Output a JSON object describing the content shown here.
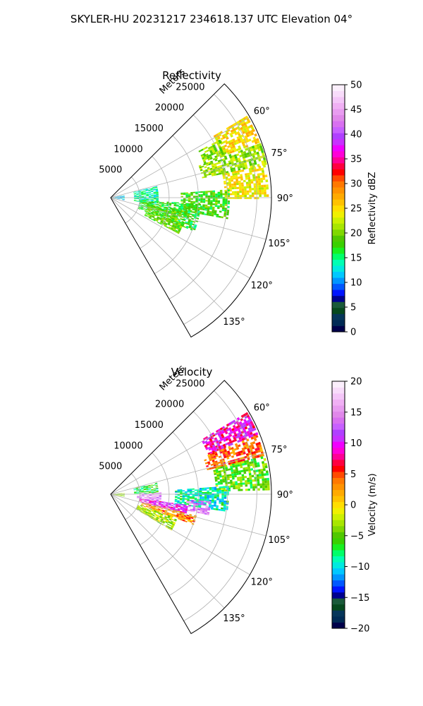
{
  "figure": {
    "suptitle": "SKYLER-HU  20231217  234618.137 UTC Elevation 04°"
  },
  "chart_data": [
    {
      "type": "heatmap",
      "title": "Reflectivity",
      "projection": "polar-sector",
      "theta_direction": "clockwise",
      "theta_zero": "north",
      "theta_range_deg": [
        45,
        150
      ],
      "r_range_m": [
        0,
        27500
      ],
      "r_label": "Meters",
      "r_ticks": [
        "5000",
        "10000",
        "15000",
        "20000",
        "25000"
      ],
      "r_tick_values": [
        5000,
        10000,
        15000,
        20000,
        25000
      ],
      "theta_ticks": [
        "60°",
        "75°",
        "90°",
        "105°",
        "120°",
        "135°"
      ],
      "theta_tick_values": [
        60,
        75,
        90,
        105,
        120,
        135
      ],
      "grid": true,
      "colorbar": {
        "label": "Reflectivity dBZ",
        "vmin": 0,
        "vmax": 50,
        "ticks": [
          "0",
          "5",
          "10",
          "15",
          "20",
          "25",
          "30",
          "35",
          "40",
          "45",
          "50"
        ],
        "tick_values": [
          0,
          5,
          10,
          15,
          20,
          25,
          30,
          35,
          40,
          45,
          50
        ],
        "colors": [
          "#00004a",
          "#002a55",
          "#06365a",
          "#06491e",
          "#1a5a3a",
          "#00008f",
          "#0014ff",
          "#0058ff",
          "#0096ff",
          "#00c8ff",
          "#00eae0",
          "#00ffb4",
          "#00ff6a",
          "#18f020",
          "#3ad000",
          "#50c800",
          "#80d800",
          "#a8e600",
          "#ccf000",
          "#f0f000",
          "#ffde00",
          "#ffc200",
          "#ffaa00",
          "#ff9200",
          "#ff7800",
          "#ff4a00",
          "#ff0000",
          "#ff0040",
          "#ff0096",
          "#ff00d8",
          "#f000ff",
          "#c830ff",
          "#b040ff",
          "#c860ff",
          "#d870f0",
          "#e088ea",
          "#e89cf0",
          "#f0b0f4",
          "#f4c6f8",
          "#f8dcfa",
          "#fbeffc"
        ]
      },
      "echo_regions": [
        {
          "theta": [
            59,
            69
          ],
          "r": [
            20500,
            27000
          ],
          "value": 25
        },
        {
          "theta": [
            62,
            70
          ],
          "r": [
            17000,
            21000
          ],
          "value": 20
        },
        {
          "theta": [
            70,
            78
          ],
          "r": [
            16000,
            27000
          ],
          "value": 21
        },
        {
          "theta": [
            78,
            90
          ],
          "r": [
            19500,
            27000
          ],
          "value": 24
        },
        {
          "theta": [
            86,
            100
          ],
          "r": [
            12000,
            20000
          ],
          "value": 18
        },
        {
          "theta": [
            76,
            98
          ],
          "r": [
            4000,
            8000
          ],
          "value": 14
        },
        {
          "theta": [
            94,
            112
          ],
          "r": [
            5000,
            15500
          ],
          "value": 17
        },
        {
          "theta": [
            100,
            118
          ],
          "r": [
            6500,
            13000
          ],
          "value": 19
        },
        {
          "theta": [
            80,
            100
          ],
          "r": [
            300,
            2200
          ],
          "value": 12
        }
      ]
    },
    {
      "type": "heatmap",
      "title": "Velocity",
      "projection": "polar-sector",
      "theta_direction": "clockwise",
      "theta_zero": "north",
      "theta_range_deg": [
        45,
        150
      ],
      "r_range_m": [
        0,
        27500
      ],
      "r_label": "Meters",
      "r_ticks": [
        "5000",
        "10000",
        "15000",
        "20000",
        "25000"
      ],
      "r_tick_values": [
        5000,
        10000,
        15000,
        20000,
        25000
      ],
      "theta_ticks": [
        "60°",
        "75°",
        "90°",
        "105°",
        "120°",
        "135°"
      ],
      "theta_tick_values": [
        60,
        75,
        90,
        105,
        120,
        135
      ],
      "grid": true,
      "colorbar": {
        "label": "Velocity (m/s)",
        "vmin": -20,
        "vmax": 20,
        "ticks": [
          "−20",
          "−15",
          "−10",
          "−5",
          "0",
          "5",
          "10",
          "15",
          "20"
        ],
        "tick_values": [
          -20,
          -15,
          -10,
          -5,
          0,
          5,
          10,
          15,
          20
        ],
        "colors": [
          "#00004a",
          "#002a55",
          "#06365a",
          "#06491e",
          "#1a5a3a",
          "#00008f",
          "#0014ff",
          "#0058ff",
          "#0096ff",
          "#00c8ff",
          "#00eae0",
          "#00ffb4",
          "#00ff6a",
          "#18f020",
          "#3ad000",
          "#50c800",
          "#80d800",
          "#a8e600",
          "#ccf000",
          "#f0f000",
          "#ffde00",
          "#ffc200",
          "#ffaa00",
          "#ff9200",
          "#ff7800",
          "#ff4a00",
          "#ff0000",
          "#ff0040",
          "#ff0096",
          "#ff00d8",
          "#f000ff",
          "#c830ff",
          "#b040ff",
          "#c860ff",
          "#d870f0",
          "#e088ea",
          "#e89cf0",
          "#f0b0f4",
          "#f4c6f8",
          "#f8dcfa",
          "#fbeffc"
        ]
      },
      "echo_regions": [
        {
          "theta": [
            59,
            68
          ],
          "r": [
            18000,
            27000
          ],
          "value": 9
        },
        {
          "theta": [
            68,
            76
          ],
          "r": [
            17000,
            27000
          ],
          "value": 4
        },
        {
          "theta": [
            76,
            88
          ],
          "r": [
            18000,
            27000
          ],
          "value": -5
        },
        {
          "theta": [
            86,
            98
          ],
          "r": [
            11000,
            20000
          ],
          "value": -9
        },
        {
          "theta": [
            94,
            102
          ],
          "r": [
            13000,
            17000
          ],
          "value": 14
        },
        {
          "theta": [
            76,
            88
          ],
          "r": [
            4000,
            8000
          ],
          "value": -7
        },
        {
          "theta": [
            88,
            98
          ],
          "r": [
            4500,
            8500
          ],
          "value": 15
        },
        {
          "theta": [
            98,
            104
          ],
          "r": [
            5000,
            13000
          ],
          "value": 10
        },
        {
          "theta": [
            104,
            110
          ],
          "r": [
            5500,
            15000
          ],
          "value": 3
        },
        {
          "theta": [
            110,
            120
          ],
          "r": [
            5000,
            12000
          ],
          "value": -3
        },
        {
          "theta": [
            85,
            100
          ],
          "r": [
            300,
            2200
          ],
          "value": -4
        }
      ]
    }
  ]
}
